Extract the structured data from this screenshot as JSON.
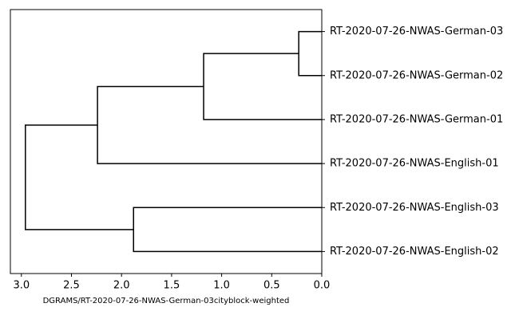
{
  "chart_data": {
    "type": "dendrogram",
    "leaves": [
      "RT-2020-07-26-NWAS-German-03",
      "RT-2020-07-26-NWAS-German-02",
      "RT-2020-07-26-NWAS-German-01",
      "RT-2020-07-26-NWAS-English-01",
      "RT-2020-07-26-NWAS-English-03",
      "RT-2020-07-26-NWAS-English-02"
    ],
    "merges": [
      {
        "children": [
          0,
          1
        ],
        "height": 0.23
      },
      {
        "children": [
          6,
          2
        ],
        "height": 1.18
      },
      {
        "children": [
          7,
          3
        ],
        "height": 2.24
      },
      {
        "children": [
          4,
          5
        ],
        "height": 1.88
      },
      {
        "children": [
          8,
          9
        ],
        "height": 2.96
      }
    ],
    "color": "#000000",
    "xlim": [
      3.11,
      0
    ],
    "xticks": [
      {
        "value": 3,
        "label": "3.0"
      },
      {
        "value": 2.5,
        "label": "2.5"
      },
      {
        "value": 2,
        "label": "2.0"
      },
      {
        "value": 1.5,
        "label": "1.5"
      },
      {
        "value": 1,
        "label": "1.0"
      },
      {
        "value": 0.5,
        "label": "0.5"
      },
      {
        "value": 0,
        "label": "0.0"
      }
    ],
    "xlabel": "DGRAMS/RT-2020-07-26-NWAS-German-03cityblock-weighted"
  }
}
